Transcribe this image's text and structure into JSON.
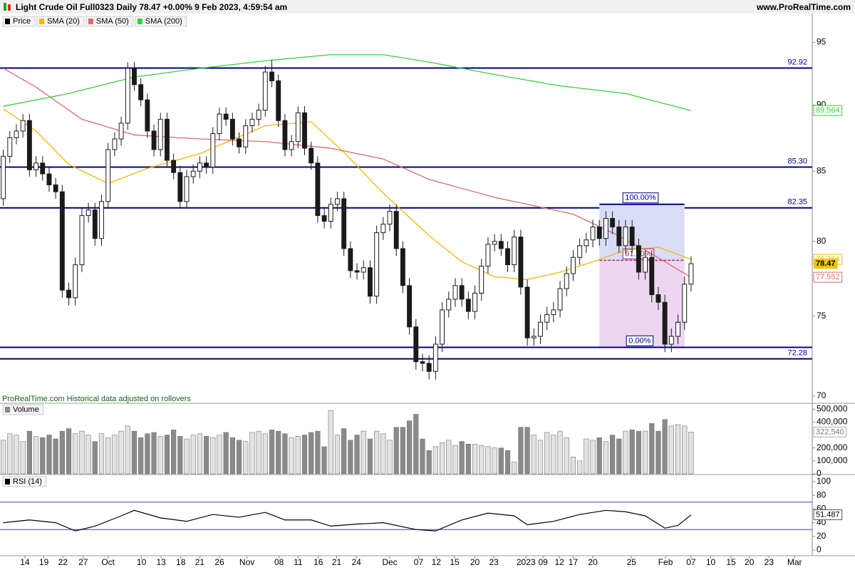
{
  "header": {
    "title": "Light Crude Oil Full0323 Daily 78.47 +0.00% 9 Feb 2023, 4:59:54 am",
    "site": "www.ProRealTime.com"
  },
  "footer_note": "ProRealTime.com Historical data adjusted on rollovers",
  "chart_data": [
    {
      "type": "candlestick",
      "name": "Price",
      "xlim": [
        -0.5,
        123.5
      ],
      "ylim": [
        69.6,
        97.4
      ],
      "log": true,
      "yticks": [
        70,
        75,
        80,
        85,
        90,
        95
      ],
      "up_color": "#ffffff",
      "down_color": "#1a1a1a",
      "open": [
        83.0,
        86.1,
        87.5,
        88.0,
        88.8,
        85.1,
        85.6,
        84.8,
        84.0,
        83.5,
        76.7,
        76.2,
        78.4,
        81.8,
        82.2,
        80.2,
        82.8,
        86.6,
        87.4,
        88.6,
        92.9,
        91.6,
        90.4,
        88.0,
        86.6,
        88.9,
        85.8,
        84.9,
        82.8,
        84.6,
        85.0,
        85.6,
        85.3,
        87.8,
        89.3,
        88.9,
        87.4,
        86.8,
        88.4,
        88.9,
        89.6,
        92.6,
        91.9,
        88.8,
        86.6,
        87.2,
        89.4,
        86.7,
        85.6,
        81.8,
        81.4,
        82.6,
        83.0,
        79.5,
        78.0,
        77.9,
        78.2,
        76.3,
        80.6,
        81.2,
        82.1,
        79.5,
        77.0,
        74.3,
        72.1,
        72.0,
        71.5,
        73.2,
        75.4,
        76.1,
        77.0,
        76.1,
        75.3,
        76.5,
        78.3,
        79.8,
        80.0,
        79.5,
        78.4,
        80.3,
        76.9,
        73.6,
        73.7,
        74.6,
        75.1,
        75.4,
        76.8,
        77.8,
        78.9,
        79.7,
        80.1,
        81.0,
        80.2,
        81.6,
        81.0,
        79.7,
        81.0,
        79.7,
        77.9,
        78.9,
        76.4,
        75.9,
        73.2,
        73.7,
        74.6,
        77.1
      ],
      "high": [
        86.6,
        88.0,
        88.5,
        89.3,
        89.3,
        86.1,
        86.1,
        85.3,
        84.5,
        84.0,
        77.2,
        78.9,
        82.3,
        82.7,
        82.7,
        83.3,
        87.1,
        87.9,
        89.1,
        93.4,
        93.4,
        92.1,
        90.9,
        88.5,
        89.4,
        89.4,
        86.3,
        85.4,
        85.1,
        85.5,
        86.1,
        86.1,
        88.3,
        89.8,
        89.8,
        89.4,
        87.9,
        88.9,
        89.4,
        90.1,
        93.1,
        93.6,
        92.4,
        89.3,
        87.7,
        89.9,
        89.9,
        87.2,
        86.1,
        82.3,
        83.1,
        83.5,
        83.5,
        80.0,
        78.5,
        78.7,
        78.7,
        81.1,
        81.7,
        82.6,
        82.6,
        80.0,
        77.5,
        74.8,
        72.6,
        72.5,
        73.7,
        75.9,
        76.6,
        77.5,
        77.5,
        76.6,
        77.0,
        78.8,
        80.3,
        80.5,
        80.5,
        80.0,
        80.8,
        80.8,
        77.4,
        74.2,
        75.1,
        75.6,
        75.9,
        77.3,
        78.3,
        79.4,
        80.2,
        80.6,
        81.5,
        81.5,
        82.1,
        82.1,
        81.5,
        81.5,
        81.5,
        80.2,
        79.4,
        79.4,
        76.9,
        76.4,
        74.2,
        75.1,
        77.6,
        78.97
      ],
      "low": [
        82.5,
        85.6,
        87.0,
        87.5,
        84.6,
        84.6,
        84.3,
        83.5,
        83.0,
        76.2,
        75.7,
        75.7,
        77.9,
        81.3,
        79.7,
        79.7,
        82.3,
        86.1,
        86.9,
        88.1,
        91.1,
        89.9,
        87.5,
        86.1,
        86.1,
        85.3,
        84.4,
        82.3,
        82.3,
        84.1,
        84.5,
        84.8,
        84.8,
        87.3,
        88.4,
        86.9,
        86.3,
        86.3,
        87.9,
        88.4,
        89.1,
        91.4,
        88.3,
        86.1,
        86.1,
        86.7,
        86.2,
        85.1,
        81.3,
        80.9,
        80.9,
        82.1,
        79.0,
        77.5,
        77.4,
        77.4,
        75.8,
        75.8,
        80.1,
        80.7,
        79.0,
        76.5,
        73.8,
        71.6,
        71.5,
        71.0,
        71.0,
        72.7,
        74.9,
        75.6,
        75.6,
        74.8,
        74.8,
        76.0,
        77.8,
        79.3,
        79.0,
        77.9,
        77.9,
        76.4,
        73.1,
        73.1,
        73.2,
        74.1,
        74.6,
        74.9,
        76.3,
        77.3,
        78.4,
        79.2,
        79.6,
        79.7,
        79.7,
        80.5,
        79.2,
        79.2,
        79.2,
        77.4,
        77.4,
        75.9,
        75.4,
        72.7,
        72.7,
        73.2,
        74.1,
        76.6
      ],
      "close": [
        86.1,
        87.5,
        88.0,
        88.8,
        85.1,
        85.6,
        84.8,
        84.0,
        83.5,
        76.7,
        76.2,
        78.4,
        81.8,
        82.2,
        80.2,
        82.8,
        86.6,
        87.4,
        88.6,
        92.9,
        91.6,
        90.4,
        88.0,
        86.6,
        88.9,
        85.8,
        84.9,
        82.8,
        84.6,
        85.0,
        85.6,
        85.3,
        87.8,
        89.3,
        88.9,
        87.4,
        86.8,
        88.4,
        88.9,
        89.6,
        92.6,
        91.9,
        88.8,
        86.6,
        87.2,
        89.4,
        86.7,
        85.6,
        81.8,
        81.4,
        82.6,
        83.0,
        79.5,
        78.0,
        77.9,
        78.2,
        76.3,
        80.6,
        81.2,
        82.1,
        79.5,
        77.0,
        74.3,
        72.1,
        72.0,
        71.5,
        73.2,
        75.4,
        76.1,
        77.0,
        76.1,
        75.3,
        76.5,
        78.3,
        79.8,
        80.0,
        79.5,
        78.4,
        80.3,
        76.9,
        73.6,
        73.7,
        74.6,
        75.1,
        75.4,
        76.8,
        77.8,
        78.9,
        79.7,
        80.1,
        81.0,
        80.2,
        81.6,
        81.0,
        79.7,
        81.0,
        79.7,
        77.9,
        78.9,
        76.4,
        75.9,
        73.2,
        73.7,
        74.6,
        77.1,
        78.47
      ],
      "overlays": [
        {
          "name": "SMA (20)",
          "color": "#f2b705",
          "x": [
            0,
            5,
            10,
            16,
            22,
            30,
            40,
            47,
            52,
            58,
            65,
            70,
            75,
            80,
            85,
            90,
            95,
            100,
            105
          ],
          "values": [
            89.7,
            88.0,
            85.5,
            84.1,
            85.2,
            86.3,
            88.4,
            88.7,
            86.4,
            83.4,
            80.4,
            78.6,
            77.6,
            77.4,
            77.9,
            78.6,
            79.4,
            79.6,
            78.764
          ]
        },
        {
          "name": "SMA (50)",
          "color": "#d96b6b",
          "x": [
            0,
            5,
            12,
            20,
            30,
            40,
            50,
            58,
            65,
            75,
            80,
            87,
            93,
            98,
            105
          ],
          "values": [
            92.9,
            91.4,
            88.9,
            87.7,
            87.4,
            87.2,
            86.7,
            85.9,
            84.4,
            83.1,
            82.6,
            81.9,
            80.6,
            79.4,
            77.552
          ]
        },
        {
          "name": "SMA (200)",
          "color": "#3ccf3c",
          "x": [
            0,
            10,
            20,
            30,
            40,
            50,
            58,
            65,
            75,
            85,
            95,
            105
          ],
          "values": [
            89.9,
            90.9,
            92.2,
            92.9,
            93.5,
            94.0,
            94.0,
            93.4,
            92.4,
            91.5,
            90.9,
            89.564
          ]
        }
      ],
      "levels": [
        92.92,
        {
          "value": 85.3,
          "label": "85.30"
        },
        82.35,
        72.28
      ],
      "level_color": "#000080",
      "fibonacci": {
        "x": [
          91,
          104
        ],
        "levels": [
          {
            "value": 82.6,
            "label": "100.00%"
          },
          {
            "value": 78.7,
            "label": "61.80%"
          },
          {
            "value": 73.0,
            "label": "0.00%"
          }
        ]
      }
    },
    {
      "type": "bar",
      "name": "Volume",
      "xlim": [
        -0.5,
        123.5
      ],
      "ylim": [
        0,
        540000
      ],
      "yticks": [
        0,
        {
          "value": 100000,
          "label": "100,000"
        },
        {
          "value": 200000,
          "label": "200,000"
        },
        {
          "value": 400000,
          "label": "400,000"
        },
        {
          "value": 500000,
          "label": "500,000"
        }
      ],
      "values": [
        260000,
        310000,
        300000,
        250000,
        330000,
        290000,
        280000,
        300000,
        270000,
        330000,
        350000,
        310000,
        330000,
        300000,
        250000,
        310000,
        280000,
        300000,
        330000,
        370000,
        330000,
        280000,
        310000,
        320000,
        290000,
        300000,
        340000,
        290000,
        270000,
        300000,
        310000,
        290000,
        280000,
        300000,
        320000,
        280000,
        260000,
        250000,
        320000,
        330000,
        310000,
        340000,
        330000,
        310000,
        280000,
        290000,
        300000,
        320000,
        330000,
        210000,
        490000,
        300000,
        350000,
        260000,
        300000,
        330000,
        270000,
        330000,
        310000,
        260000,
        360000,
        360000,
        410000,
        460000,
        270000,
        180000,
        210000,
        240000,
        260000,
        220000,
        250000,
        230000,
        230000,
        220000,
        210000,
        200000,
        200000,
        180000,
        90000,
        360000,
        360000,
        300000,
        260000,
        320000,
        300000,
        330000,
        280000,
        130000,
        100000,
        270000,
        260000,
        280000,
        250000,
        300000,
        270000,
        330000,
        340000,
        330000,
        330000,
        390000,
        330000,
        420000,
        370000,
        380000,
        370000,
        322540
      ],
      "last_value_label": "322,540"
    },
    {
      "type": "line",
      "name": "RSI (14)",
      "color": "#000000",
      "xlim": [
        -0.5,
        123.5
      ],
      "ylim": [
        -8.3,
        108.3
      ],
      "yticks": [
        0,
        20,
        40,
        60,
        80,
        100
      ],
      "levels": [
        70,
        30
      ],
      "level_color": "#3b3bb0",
      "x": [
        0,
        4,
        8,
        11,
        14,
        18,
        20,
        24,
        28,
        32,
        36,
        40,
        43,
        47,
        50,
        54,
        58,
        63,
        66,
        70,
        74,
        78,
        80,
        84,
        88,
        92,
        95,
        98,
        101,
        103,
        105
      ],
      "values": [
        40,
        44,
        40,
        28,
        35,
        50,
        58,
        47,
        42,
        52,
        48,
        55,
        44,
        44,
        35,
        38,
        40,
        30,
        28,
        44,
        54,
        50,
        37,
        42,
        52,
        58,
        56,
        50,
        32,
        36,
        51.487
      ],
      "xticks": [
        {
          "value": 3.3,
          "label": "14"
        },
        {
          "value": 6.2,
          "label": "19"
        },
        {
          "value": 9.1,
          "label": "22"
        },
        {
          "value": 12.2,
          "label": "27"
        },
        {
          "value": 16,
          "label": "Oct"
        },
        {
          "value": 21.1,
          "label": "10"
        },
        {
          "value": 24.1,
          "label": "13"
        },
        {
          "value": 27.1,
          "label": "18"
        },
        {
          "value": 30,
          "label": "21"
        },
        {
          "value": 33,
          "label": "26"
        },
        {
          "value": 37.2,
          "label": "Nov"
        },
        {
          "value": 42.1,
          "label": "08"
        },
        {
          "value": 45,
          "label": "11"
        },
        {
          "value": 48.1,
          "label": "16"
        },
        {
          "value": 50.9,
          "label": "21"
        },
        {
          "value": 53.9,
          "label": "24"
        },
        {
          "value": 59,
          "label": "Dec"
        },
        {
          "value": 63.4,
          "label": "07"
        },
        {
          "value": 66.1,
          "label": "12"
        },
        {
          "value": 68.9,
          "label": "15"
        },
        {
          "value": 72,
          "label": "20"
        },
        {
          "value": 74.9,
          "label": "23"
        },
        {
          "value": 79.8,
          "label": "2023"
        },
        {
          "value": 82.4,
          "label": "09"
        },
        {
          "value": 84.9,
          "label": "12"
        },
        {
          "value": 87,
          "label": "17"
        },
        {
          "value": 90,
          "label": "20"
        },
        {
          "value": 95.9,
          "label": "25"
        },
        {
          "value": 101.1,
          "label": "Feb"
        },
        {
          "value": 105,
          "label": "07"
        },
        {
          "value": 108,
          "label": "10"
        },
        {
          "value": 111.1,
          "label": "15"
        },
        {
          "value": 113.9,
          "label": "20"
        },
        {
          "value": 116.9,
          "label": "23"
        },
        {
          "value": 120.8,
          "label": "Mar"
        }
      ]
    }
  ]
}
